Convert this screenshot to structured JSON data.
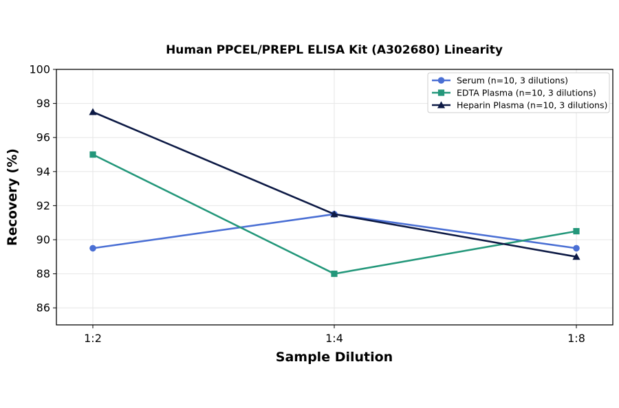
{
  "chart_data": {
    "type": "line",
    "title": "Human PPCEL/PREPL ELISA Kit (A302680) Linearity",
    "xlabel": "Sample Dilution",
    "ylabel": "Recovery (%)",
    "categories": [
      "1:2",
      "1:4",
      "1:8"
    ],
    "ylim": [
      85,
      100
    ],
    "yticks": [
      86,
      88,
      90,
      92,
      94,
      96,
      98,
      100
    ],
    "grid": true,
    "legend_position": "top-right",
    "series": [
      {
        "name": "Serum (n=10, 3 dilutions)",
        "values": [
          89.5,
          91.5,
          89.5
        ],
        "color": "#4a6fd4",
        "marker": "circle"
      },
      {
        "name": "EDTA Plasma (n=10, 3 dilutions)",
        "values": [
          95.0,
          88.0,
          90.5
        ],
        "color": "#23977a",
        "marker": "square"
      },
      {
        "name": "Heparin Plasma (n=10, 3 dilutions)",
        "values": [
          97.5,
          91.5,
          89.0
        ],
        "color": "#0d1a45",
        "marker": "triangle"
      }
    ]
  }
}
